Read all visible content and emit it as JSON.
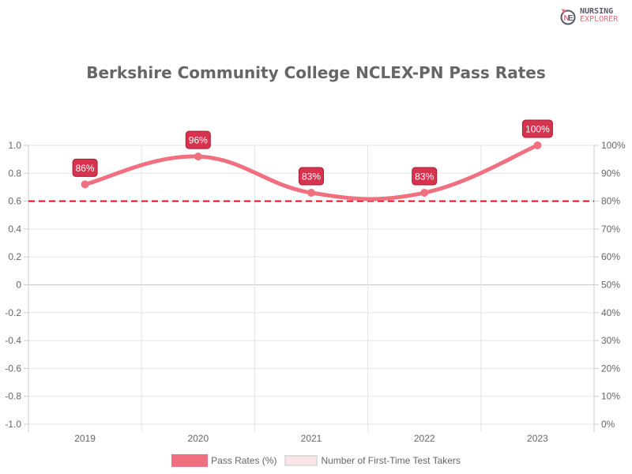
{
  "brand": {
    "line1": "NURSING",
    "line2": "EXPLORER",
    "icon": "nursing-explorer-logo-icon"
  },
  "header": {
    "title": "Berkshire Community College NCLEX-PN Pass Rates"
  },
  "legend": {
    "items": [
      {
        "label": "Pass Rates (%)",
        "color": "#f07080"
      },
      {
        "label": "Number of First-Time Test Takers",
        "color": "#fbe5ea"
      }
    ]
  },
  "colors": {
    "line": "#f07080",
    "label_bg": "#d6334f",
    "label_border": "#a61e36",
    "threshold": "#e0101e",
    "grid": "#e5e5e5",
    "axis_text": "#666666",
    "title": "#666666"
  },
  "chart_data": {
    "type": "line",
    "title": "Berkshire Community College NCLEX-PN Pass Rates",
    "categories": [
      "2019",
      "2020",
      "2021",
      "2022",
      "2023"
    ],
    "series": [
      {
        "name": "Pass Rates (%)",
        "values": [
          86,
          96,
          83,
          83,
          100
        ],
        "labels": [
          "86%",
          "96%",
          "83%",
          "83%",
          "100%"
        ],
        "axis": "right"
      },
      {
        "name": "Number of First-Time Test Takers",
        "values": [],
        "axis": "left"
      }
    ],
    "left_axis": {
      "ticks": [
        "1.0",
        "0.8",
        "0.6",
        "0.4",
        "0.2",
        "0",
        "-0.2",
        "-0.4",
        "-0.6",
        "-0.8",
        "-1.0"
      ],
      "ylim": [
        -1.0,
        1.0
      ]
    },
    "right_axis": {
      "ticks": [
        "100%",
        "90%",
        "80%",
        "70%",
        "60%",
        "50%",
        "40%",
        "30%",
        "20%",
        "10%",
        "0%"
      ],
      "ylim": [
        0,
        100
      ]
    },
    "threshold": {
      "value": 80,
      "style": "dashed",
      "color": "#e0101e"
    },
    "xlabel": "",
    "ylabel": "",
    "grid": true,
    "legend_position": "bottom"
  }
}
